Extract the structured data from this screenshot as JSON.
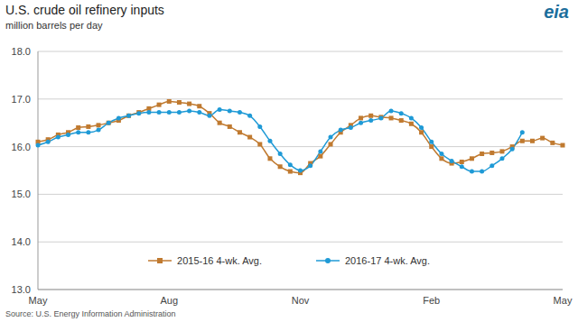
{
  "chart_data": {
    "type": "line",
    "title": "U.S. crude oil refinery inputs",
    "subtitle": "million barrels per day",
    "source": "Source: U.S. Energy Information Administration",
    "logo": "eia",
    "categories": [
      "May",
      null,
      null,
      null,
      null,
      null,
      null,
      null,
      null,
      null,
      null,
      null,
      null,
      "Aug",
      null,
      null,
      null,
      null,
      null,
      null,
      null,
      null,
      null,
      null,
      null,
      null,
      "Nov",
      null,
      null,
      null,
      null,
      null,
      null,
      null,
      null,
      null,
      null,
      null,
      null,
      "Feb",
      null,
      null,
      null,
      null,
      null,
      null,
      null,
      null,
      null,
      null,
      null,
      null,
      "May"
    ],
    "series": [
      {
        "name": "2015-16 4-wk. Avg.",
        "color": "#c07a30",
        "marker": "square",
        "values": [
          16.1,
          16.15,
          16.25,
          16.3,
          16.4,
          16.42,
          16.45,
          16.5,
          16.55,
          16.65,
          16.72,
          16.8,
          16.88,
          16.95,
          16.93,
          16.9,
          16.85,
          16.7,
          16.5,
          16.42,
          16.3,
          16.2,
          16.05,
          15.75,
          15.58,
          15.48,
          15.45,
          15.65,
          15.8,
          16.05,
          16.3,
          16.45,
          16.6,
          16.65,
          16.62,
          16.6,
          16.55,
          16.48,
          16.3,
          16.0,
          15.75,
          15.65,
          15.68,
          15.75,
          15.85,
          15.87,
          15.9,
          16.0,
          16.12,
          16.12,
          16.18,
          16.08,
          16.03
        ]
      },
      {
        "name": "2016-17 4-wk. Avg.",
        "color": "#1f9ad6",
        "marker": "circle",
        "values": [
          16.03,
          16.1,
          16.2,
          16.25,
          16.3,
          16.3,
          16.35,
          16.5,
          16.6,
          16.65,
          16.7,
          16.72,
          16.72,
          16.72,
          16.72,
          16.75,
          16.72,
          16.65,
          16.78,
          16.75,
          16.72,
          16.65,
          16.42,
          16.12,
          15.85,
          15.62,
          15.5,
          15.6,
          15.9,
          16.2,
          16.35,
          16.4,
          16.5,
          16.55,
          16.6,
          16.75,
          16.7,
          16.6,
          16.4,
          16.1,
          15.85,
          15.7,
          15.58,
          15.48,
          15.48,
          15.6,
          15.75,
          15.95,
          16.3,
          null,
          null,
          null,
          null
        ]
      }
    ],
    "ylim": [
      13,
      18
    ],
    "yticks": [
      {
        "value": 13,
        "label": "13.0"
      },
      {
        "value": 14,
        "label": "14.0"
      },
      {
        "value": 15,
        "label": "15.0"
      },
      {
        "value": 16,
        "label": "16.0"
      },
      {
        "value": 17,
        "label": "17.0"
      },
      {
        "value": 18,
        "label": "18.0"
      }
    ],
    "grid": true,
    "legend": "bottom"
  }
}
